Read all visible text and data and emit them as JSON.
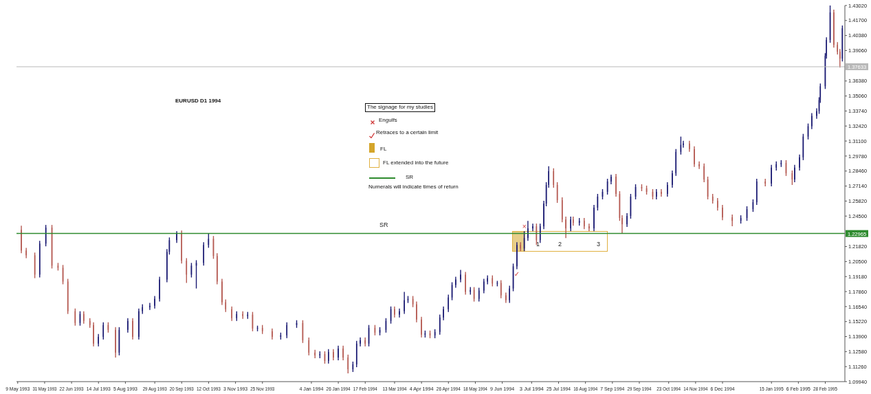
{
  "chart_data": {
    "type": "candlestick",
    "title": "EURUSD D1 1994",
    "x": [
      "1993-05-12",
      "1993-05-16",
      "1993-05-23",
      "1993-05-27",
      "1993-06-01",
      "1993-06-06",
      "1993-06-11",
      "1993-06-15",
      "1993-06-19",
      "1993-06-25",
      "1993-06-29",
      "1993-07-02",
      "1993-07-07",
      "1993-07-10",
      "1993-07-14",
      "1993-07-18",
      "1993-07-22",
      "1993-07-28",
      "1993-07-31",
      "1993-08-07",
      "1993-08-11",
      "1993-08-16",
      "1993-08-19",
      "1993-08-25",
      "1993-08-29",
      "1993-09-02",
      "1993-09-08",
      "1993-09-10",
      "1993-09-16",
      "1993-09-20",
      "1993-09-24",
      "1993-09-28",
      "1993-10-02",
      "1993-10-08",
      "1993-10-12",
      "1993-10-16",
      "1993-10-19",
      "1993-10-23",
      "1993-10-26",
      "1993-10-31",
      "1993-11-04",
      "1993-11-09",
      "1993-11-13",
      "1993-11-17",
      "1993-11-21",
      "1993-11-25",
      "1993-12-03",
      "1993-12-10",
      "1993-12-15",
      "1993-12-23",
      "1993-12-28",
      "1994-01-02",
      "1994-01-07",
      "1994-01-11",
      "1994-01-15",
      "1994-01-18",
      "1994-01-22",
      "1994-01-26",
      "1994-01-30",
      "1994-02-03",
      "1994-02-07",
      "1994-02-10",
      "1994-02-13",
      "1994-02-17",
      "1994-02-20",
      "1994-02-25",
      "1994-03-01",
      "1994-03-06",
      "1994-03-10",
      "1994-03-13",
      "1994-03-17",
      "1994-03-21",
      "1994-03-24",
      "1994-03-28",
      "1994-03-31",
      "1994-04-04",
      "1994-04-07",
      "1994-04-11",
      "1994-04-15",
      "1994-04-19",
      "1994-04-22",
      "1994-04-26",
      "1994-04-29",
      "1994-05-02",
      "1994-05-06",
      "1994-05-10",
      "1994-05-14",
      "1994-05-17",
      "1994-05-21",
      "1994-05-25",
      "1994-05-28",
      "1994-06-01",
      "1994-06-05",
      "1994-06-08",
      "1994-06-12",
      "1994-06-15",
      "1994-06-18",
      "1994-06-21",
      "1994-06-24",
      "1994-06-27",
      "1994-06-30",
      "1994-07-04",
      "1994-07-07",
      "1994-07-10",
      "1994-07-13",
      "1994-07-15",
      "1994-07-17",
      "1994-07-21",
      "1994-07-24",
      "1994-07-28",
      "1994-07-31",
      "1994-08-04",
      "1994-08-06",
      "1994-08-11",
      "1994-08-15",
      "1994-08-19",
      "1994-08-23",
      "1994-08-26",
      "1994-08-30",
      "1994-09-03",
      "1994-09-06",
      "1994-09-10",
      "1994-09-13",
      "1994-09-15",
      "1994-09-19",
      "1994-09-22",
      "1994-09-26",
      "1994-10-01",
      "1994-10-05",
      "1994-10-10",
      "1994-10-13",
      "1994-10-17",
      "1994-10-22",
      "1994-10-26",
      "1994-10-29",
      "1994-11-02",
      "1994-11-04",
      "1994-11-09",
      "1994-11-13",
      "1994-11-17",
      "1994-11-21",
      "1994-11-24",
      "1994-11-28",
      "1994-12-02",
      "1994-12-06",
      "1994-12-14",
      "1994-12-21",
      "1994-12-26",
      "1994-12-31",
      "1995-01-03",
      "1995-01-10",
      "1995-01-15",
      "1995-01-19",
      "1995-01-23",
      "1995-01-27",
      "1995-02-01",
      "1995-02-03",
      "1995-02-07",
      "1995-02-10",
      "1995-02-14",
      "1995-02-17",
      "1995-02-21",
      "1995-02-23",
      "1995-02-24",
      "1995-02-28",
      "1995-03-01",
      "1995-03-04",
      "1995-03-07",
      "1995-03-10",
      "1995-03-12",
      "1995-03-14"
    ],
    "ohlc": [
      [
        1.2329,
        1.2366,
        1.2123,
        1.2147
      ],
      [
        1.2147,
        1.2171,
        1.208,
        1.2105
      ],
      [
        1.2105,
        1.2129,
        1.1904,
        1.1935
      ],
      [
        1.1935,
        1.2232,
        1.191,
        1.2208
      ],
      [
        1.2208,
        1.2372,
        1.2184,
        1.2348
      ],
      [
        1.2348,
        1.2372,
        1.1989,
        1.2014
      ],
      [
        1.2014,
        1.2038,
        1.1971,
        1.1995
      ],
      [
        1.1995,
        1.202,
        1.185,
        1.1874
      ],
      [
        1.1874,
        1.1898,
        1.1589,
        1.1613
      ],
      [
        1.1613,
        1.1637,
        1.1486,
        1.151
      ],
      [
        1.151,
        1.1613,
        1.1486,
        1.1589
      ],
      [
        1.1589,
        1.1613,
        1.1504,
        1.1528
      ],
      [
        1.1528,
        1.1552,
        1.1467,
        1.1492
      ],
      [
        1.1492,
        1.1516,
        1.1304,
        1.1328
      ],
      [
        1.1328,
        1.1413,
        1.1304,
        1.1388
      ],
      [
        1.1388,
        1.1516,
        1.1364,
        1.1492
      ],
      [
        1.1492,
        1.1516,
        1.1425,
        1.1449
      ],
      [
        1.1449,
        1.1473,
        1.1206,
        1.1249
      ],
      [
        1.1249,
        1.1473,
        1.1225,
        1.1449
      ],
      [
        1.1449,
        1.1552,
        1.1425,
        1.1528
      ],
      [
        1.1528,
        1.1552,
        1.1364,
        1.1388
      ],
      [
        1.1388,
        1.1637,
        1.1364,
        1.1613
      ],
      [
        1.1613,
        1.1674,
        1.1589,
        1.1649
      ],
      [
        1.1649,
        1.1686,
        1.1625,
        1.1661
      ],
      [
        1.1661,
        1.1747,
        1.1637,
        1.1722
      ],
      [
        1.1722,
        1.1917,
        1.1698,
        1.1892
      ],
      [
        1.1892,
        1.2159,
        1.1868,
        1.2135
      ],
      [
        1.2135,
        1.2262,
        1.2111,
        1.2238
      ],
      [
        1.2238,
        1.2317,
        1.2214,
        1.2299
      ],
      [
        1.2299,
        1.2323,
        1.2032,
        1.2057
      ],
      [
        1.2057,
        1.208,
        1.1862,
        1.1935
      ],
      [
        1.1935,
        1.2038,
        1.191,
        1.2014
      ],
      [
        1.2014,
        1.2062,
        1.1813,
        1.2038
      ],
      [
        1.2038,
        1.222,
        1.2014,
        1.2196
      ],
      [
        1.2196,
        1.2299,
        1.2171,
        1.225
      ],
      [
        1.225,
        1.2275,
        1.2074,
        1.2099
      ],
      [
        1.2099,
        1.2123,
        1.185,
        1.1874
      ],
      [
        1.1874,
        1.1898,
        1.1668,
        1.1692
      ],
      [
        1.1692,
        1.1716,
        1.1607,
        1.1631
      ],
      [
        1.1631,
        1.1655,
        1.1528,
        1.1552
      ],
      [
        1.1552,
        1.1613,
        1.1528,
        1.1589
      ],
      [
        1.1589,
        1.1613,
        1.1546,
        1.1571
      ],
      [
        1.1571,
        1.1607,
        1.1546,
        1.1583
      ],
      [
        1.1583,
        1.1607,
        1.1437,
        1.1461
      ],
      [
        1.1461,
        1.1486,
        1.1437,
        1.1467
      ],
      [
        1.1467,
        1.1492,
        1.1413,
        1.1437
      ],
      [
        1.1437,
        1.1461,
        1.1364,
        1.1388
      ],
      [
        1.1388,
        1.1425,
        1.1364,
        1.1401
      ],
      [
        1.1401,
        1.1516,
        1.1376,
        1.1492
      ],
      [
        1.1492,
        1.1534,
        1.1467,
        1.151
      ],
      [
        1.151,
        1.1534,
        1.1334,
        1.1358
      ],
      [
        1.1358,
        1.1382,
        1.1225,
        1.1249
      ],
      [
        1.1249,
        1.1273,
        1.12,
        1.1225
      ],
      [
        1.1225,
        1.1261,
        1.12,
        1.1237
      ],
      [
        1.1237,
        1.1261,
        1.1152,
        1.1176
      ],
      [
        1.1176,
        1.1279,
        1.1152,
        1.1255
      ],
      [
        1.1255,
        1.1279,
        1.1182,
        1.1206
      ],
      [
        1.1206,
        1.131,
        1.1182,
        1.1285
      ],
      [
        1.1285,
        1.131,
        1.1182,
        1.1206
      ],
      [
        1.1206,
        1.1231,
        1.1067,
        1.1103
      ],
      [
        1.1103,
        1.117,
        1.1079,
        1.1146
      ],
      [
        1.1146,
        1.1352,
        1.1121,
        1.1328
      ],
      [
        1.1328,
        1.1382,
        1.1304,
        1.1358
      ],
      [
        1.1358,
        1.1382,
        1.1304,
        1.1328
      ],
      [
        1.1328,
        1.1492,
        1.1304,
        1.1467
      ],
      [
        1.1467,
        1.1492,
        1.1401,
        1.1425
      ],
      [
        1.1425,
        1.1473,
        1.1401,
        1.1449
      ],
      [
        1.1449,
        1.1552,
        1.1425,
        1.1528
      ],
      [
        1.1528,
        1.1655,
        1.1504,
        1.1631
      ],
      [
        1.1631,
        1.1655,
        1.1558,
        1.1583
      ],
      [
        1.1583,
        1.1637,
        1.1558,
        1.1613
      ],
      [
        1.1613,
        1.1783,
        1.1589,
        1.171
      ],
      [
        1.171,
        1.1747,
        1.1686,
        1.1722
      ],
      [
        1.1722,
        1.1747,
        1.1649,
        1.1674
      ],
      [
        1.1674,
        1.1698,
        1.1516,
        1.154
      ],
      [
        1.154,
        1.1564,
        1.1382,
        1.1407
      ],
      [
        1.1407,
        1.1443,
        1.1382,
        1.1419
      ],
      [
        1.1419,
        1.1443,
        1.1376,
        1.1401
      ],
      [
        1.1401,
        1.1455,
        1.1376,
        1.1431
      ],
      [
        1.1431,
        1.1583,
        1.1407,
        1.1558
      ],
      [
        1.1558,
        1.1655,
        1.1534,
        1.1631
      ],
      [
        1.1631,
        1.1759,
        1.1607,
        1.1734
      ],
      [
        1.1734,
        1.1868,
        1.171,
        1.1844
      ],
      [
        1.1844,
        1.1917,
        1.1819,
        1.1892
      ],
      [
        1.1892,
        1.1977,
        1.1868,
        1.1935
      ],
      [
        1.1935,
        1.1959,
        1.1759,
        1.1783
      ],
      [
        1.1783,
        1.1825,
        1.1759,
        1.1801
      ],
      [
        1.1801,
        1.1825,
        1.1698,
        1.1722
      ],
      [
        1.1722,
        1.1819,
        1.1698,
        1.1795
      ],
      [
        1.1795,
        1.1898,
        1.1771,
        1.1874
      ],
      [
        1.1874,
        1.1929,
        1.185,
        1.1904
      ],
      [
        1.1904,
        1.1929,
        1.1832,
        1.1856
      ],
      [
        1.1856,
        1.188,
        1.1832,
        1.1862
      ],
      [
        1.1862,
        1.1886,
        1.1728,
        1.1753
      ],
      [
        1.1753,
        1.1777,
        1.1686,
        1.171
      ],
      [
        1.171,
        1.1838,
        1.1686,
        1.1813
      ],
      [
        1.1813,
        1.2032,
        1.1789,
        1.2008
      ],
      [
        1.2008,
        1.222,
        1.1983,
        1.2196
      ],
      [
        1.2196,
        1.222,
        1.2141,
        1.2165
      ],
      [
        1.2165,
        1.2317,
        1.2141,
        1.2257
      ],
      [
        1.2257,
        1.2408,
        1.2232,
        1.2342
      ],
      [
        1.2342,
        1.2384,
        1.2317,
        1.236
      ],
      [
        1.236,
        1.2384,
        1.2196,
        1.2238
      ],
      [
        1.2238,
        1.2384,
        1.2214,
        1.236
      ],
      [
        1.236,
        1.2584,
        1.2335,
        1.256
      ],
      [
        1.256,
        1.2748,
        1.2536,
        1.2724
      ],
      [
        1.2724,
        1.2888,
        1.27,
        1.2845
      ],
      [
        1.2845,
        1.287,
        1.27,
        1.2724
      ],
      [
        1.2724,
        1.2748,
        1.2566,
        1.259
      ],
      [
        1.259,
        1.2615,
        1.2396,
        1.242
      ],
      [
        1.242,
        1.2445,
        1.2257,
        1.2342
      ],
      [
        1.2342,
        1.2445,
        1.2317,
        1.242
      ],
      [
        1.242,
        1.2445,
        1.2366,
        1.239
      ],
      [
        1.239,
        1.2433,
        1.2366,
        1.2408
      ],
      [
        1.2408,
        1.2433,
        1.2335,
        1.236
      ],
      [
        1.236,
        1.2384,
        1.2317,
        1.2342
      ],
      [
        1.2342,
        1.2548,
        1.2317,
        1.2524
      ],
      [
        1.2524,
        1.2645,
        1.2499,
        1.2621
      ],
      [
        1.2621,
        1.2687,
        1.2597,
        1.2663
      ],
      [
        1.2663,
        1.2778,
        1.2639,
        1.2754
      ],
      [
        1.2754,
        1.2815,
        1.273,
        1.2797
      ],
      [
        1.2797,
        1.2821,
        1.2621,
        1.2645
      ],
      [
        1.2645,
        1.2669,
        1.2408,
        1.2433
      ],
      [
        1.2433,
        1.2457,
        1.2299,
        1.2378
      ],
      [
        1.2378,
        1.2475,
        1.2354,
        1.2451
      ],
      [
        1.2451,
        1.2645,
        1.2427,
        1.2621
      ],
      [
        1.2621,
        1.273,
        1.2597,
        1.2706
      ],
      [
        1.2706,
        1.273,
        1.2669,
        1.2694
      ],
      [
        1.2694,
        1.2718,
        1.2639,
        1.2663
      ],
      [
        1.2663,
        1.2687,
        1.2597,
        1.2621
      ],
      [
        1.2621,
        1.2687,
        1.2597,
        1.2663
      ],
      [
        1.2663,
        1.2687,
        1.2621,
        1.2645
      ],
      [
        1.2645,
        1.2748,
        1.2621,
        1.2724
      ],
      [
        1.2724,
        1.2851,
        1.27,
        1.2827
      ],
      [
        1.2827,
        1.3039,
        1.2803,
        1.3015
      ],
      [
        1.3015,
        1.3149,
        1.2991,
        1.3076
      ],
      [
        1.3076,
        1.3112,
        1.3052,
        1.3088
      ],
      [
        1.3088,
        1.3112,
        1.3015,
        1.3039
      ],
      [
        1.3039,
        1.3064,
        1.2882,
        1.2906
      ],
      [
        1.2906,
        1.293,
        1.2864,
        1.2888
      ],
      [
        1.2888,
        1.2912,
        1.2748,
        1.2772
      ],
      [
        1.2772,
        1.2797,
        1.2597,
        1.2621
      ],
      [
        1.2621,
        1.2645,
        1.256,
        1.2584
      ],
      [
        1.2584,
        1.2609,
        1.2499,
        1.2524
      ],
      [
        1.2524,
        1.2548,
        1.2414,
        1.2439
      ],
      [
        1.2439,
        1.2463,
        1.236,
        1.2408
      ],
      [
        1.2408,
        1.2457,
        1.2384,
        1.2433
      ],
      [
        1.2433,
        1.2536,
        1.2408,
        1.2511
      ],
      [
        1.2511,
        1.2597,
        1.2487,
        1.2572
      ],
      [
        1.2572,
        1.2778,
        1.2548,
        1.2754
      ],
      [
        1.2754,
        1.2778,
        1.2712,
        1.2736
      ],
      [
        1.2736,
        1.29,
        1.2712,
        1.2876
      ],
      [
        1.2876,
        1.293,
        1.2851,
        1.2906
      ],
      [
        1.2906,
        1.2942,
        1.2882,
        1.2918
      ],
      [
        1.2918,
        1.2942,
        1.2803,
        1.2827
      ],
      [
        1.2827,
        1.2851,
        1.2724,
        1.2772
      ],
      [
        1.2772,
        1.29,
        1.2748,
        1.2876
      ],
      [
        1.2876,
        1.2991,
        1.2851,
        1.2967
      ],
      [
        1.2967,
        1.3173,
        1.2942,
        1.3149
      ],
      [
        1.3149,
        1.3264,
        1.3124,
        1.324
      ],
      [
        1.324,
        1.3355,
        1.3215,
        1.3331
      ],
      [
        1.3331,
        1.3398,
        1.3306,
        1.3373
      ],
      [
        1.3373,
        1.3495,
        1.3349,
        1.347
      ],
      [
        1.347,
        1.3616,
        1.3446,
        1.3592
      ],
      [
        1.3592,
        1.3883,
        1.3568,
        1.3859
      ],
      [
        1.3859,
        1.4023,
        1.3835,
        1.3999
      ],
      [
        1.3999,
        1.4302,
        1.3974,
        1.4241
      ],
      [
        1.4241,
        1.4266,
        1.3932,
        1.3956
      ],
      [
        1.3956,
        1.398,
        1.3871,
        1.3895
      ],
      [
        1.3895,
        1.392,
        1.3756,
        1.3835
      ],
      [
        1.3835,
        1.4126,
        1.381,
        1.4102
      ]
    ],
    "colors": [
      "#b55a52",
      "#b55a52",
      "#b55a52",
      "#1b1b73",
      "#1b1b73",
      "#b55a52",
      "#b55a52",
      "#b55a52",
      "#b55a52",
      "#b55a52",
      "#1b1b73",
      "#b55a52",
      "#b55a52",
      "#b55a52",
      "#1b1b73",
      "#1b1b73",
      "#b55a52",
      "#b55a52",
      "#1b1b73",
      "#1b1b73",
      "#b55a52",
      "#1b1b73",
      "#1b1b73",
      "#1b1b73",
      "#1b1b73",
      "#1b1b73",
      "#1b1b73",
      "#1b1b73",
      "#1b1b73",
      "#b55a52",
      "#b55a52",
      "#1b1b73",
      "#1b1b73",
      "#1b1b73",
      "#1b1b73",
      "#b55a52",
      "#b55a52",
      "#b55a52",
      "#b55a52",
      "#b55a52",
      "#1b1b73",
      "#b55a52",
      "#1b1b73",
      "#b55a52",
      "#1b1b73",
      "#b55a52",
      "#b55a52",
      "#1b1b73",
      "#1b1b73",
      "#1b1b73",
      "#b55a52",
      "#b55a52",
      "#b55a52",
      "#1b1b73",
      "#b55a52",
      "#1b1b73",
      "#b55a52",
      "#1b1b73",
      "#b55a52",
      "#b55a52",
      "#1b1b73",
      "#1b1b73",
      "#1b1b73",
      "#b55a52",
      "#1b1b73",
      "#b55a52",
      "#1b1b73",
      "#1b1b73",
      "#1b1b73",
      "#b55a52",
      "#1b1b73",
      "#1b1b73",
      "#1b1b73",
      "#b55a52",
      "#b55a52",
      "#b55a52",
      "#1b1b73",
      "#b55a52",
      "#1b1b73",
      "#1b1b73",
      "#1b1b73",
      "#1b1b73",
      "#1b1b73",
      "#1b1b73",
      "#1b1b73",
      "#b55a52",
      "#1b1b73",
      "#b55a52",
      "#1b1b73",
      "#1b1b73",
      "#1b1b73",
      "#b55a52",
      "#1b1b73",
      "#b55a52",
      "#b55a52",
      "#1b1b73",
      "#1b1b73",
      "#1b1b73",
      "#b55a52",
      "#1b1b73",
      "#1b1b73",
      "#1b1b73",
      "#b55a52",
      "#1b1b73",
      "#1b1b73",
      "#1b1b73",
      "#1b1b73",
      "#b55a52",
      "#b55a52",
      "#b55a52",
      "#b55a52",
      "#1b1b73",
      "#b55a52",
      "#1b1b73",
      "#b55a52",
      "#b55a52",
      "#1b1b73",
      "#1b1b73",
      "#1b1b73",
      "#1b1b73",
      "#1b1b73",
      "#b55a52",
      "#b55a52",
      "#b55a52",
      "#1b1b73",
      "#1b1b73",
      "#1b1b73",
      "#b55a52",
      "#b55a52",
      "#b55a52",
      "#1b1b73",
      "#b55a52",
      "#1b1b73",
      "#1b1b73",
      "#1b1b73",
      "#1b1b73",
      "#1b1b73",
      "#b55a52",
      "#b55a52",
      "#b55a52",
      "#b55a52",
      "#b55a52",
      "#b55a52",
      "#b55a52",
      "#b55a52",
      "#b55a52",
      "#1b1b73",
      "#1b1b73",
      "#1b1b73",
      "#1b1b73",
      "#b55a52",
      "#1b1b73",
      "#1b1b73",
      "#1b1b73",
      "#b55a52",
      "#b55a52",
      "#1b1b73",
      "#1b1b73",
      "#1b1b73",
      "#1b1b73",
      "#1b1b73",
      "#1b1b73",
      "#1b1b73",
      "#1b1b73",
      "#1b1b73",
      "#1b1b73",
      "#1b1b73",
      "#b55a52",
      "#b55a52",
      "#b55a52",
      "#1b1b73"
    ],
    "xlim": [
      "1993-05-08",
      "1995-03-16"
    ],
    "xticks": [
      {
        "value": "1993-05-09",
        "label": "9 May 1993"
      },
      {
        "value": "1993-05-31",
        "label": "31 May 1993"
      },
      {
        "value": "1993-06-22",
        "label": "22 Jun 1993"
      },
      {
        "value": "1993-07-14",
        "label": "14 Jul 1993"
      },
      {
        "value": "1993-08-05",
        "label": "5 Aug 1993"
      },
      {
        "value": "1993-08-29",
        "label": "29 Aug 1993"
      },
      {
        "value": "1993-09-20",
        "label": "20 Sep 1993"
      },
      {
        "value": "1993-10-12",
        "label": "12 Oct 1993"
      },
      {
        "value": "1993-11-03",
        "label": "3 Nov 1993"
      },
      {
        "value": "1993-11-25",
        "label": "25 Nov 1993"
      },
      {
        "value": "1994-01-04",
        "label": "4 Jan 1994"
      },
      {
        "value": "1994-01-26",
        "label": "26 Jan 1994"
      },
      {
        "value": "1994-02-17",
        "label": "17 Feb 1994"
      },
      {
        "value": "1994-03-13",
        "label": "13 Mar 1994"
      },
      {
        "value": "1994-04-04",
        "label": "4 Apr 1994"
      },
      {
        "value": "1994-04-26",
        "label": "26 Apr 1994"
      },
      {
        "value": "1994-05-18",
        "label": "18 May 1994"
      },
      {
        "value": "1994-06-09",
        "label": "9 Jun 1994"
      },
      {
        "value": "1994-07-03",
        "label": "3 Jul 1994"
      },
      {
        "value": "1994-07-25",
        "label": "25 Jul 1994"
      },
      {
        "value": "1994-08-16",
        "label": "16 Aug 1994"
      },
      {
        "value": "1994-09-07",
        "label": "7 Sep 1994"
      },
      {
        "value": "1994-09-29",
        "label": "29 Sep 1994"
      },
      {
        "value": "1994-10-23",
        "label": "23 Oct 1994"
      },
      {
        "value": "1994-11-14",
        "label": "14 Nov 1994"
      },
      {
        "value": "1994-12-06",
        "label": "6 Dec 1994"
      },
      {
        "value": "1995-01-15",
        "label": "15 Jan 1995"
      },
      {
        "value": "1995-02-06",
        "label": "6 Feb 1995"
      },
      {
        "value": "1995-02-28",
        "label": "28 Feb 1995"
      }
    ],
    "ylim": [
      1.0994,
      1.4302
    ],
    "yticks": [
      {
        "value": 1.0994,
        "label": "1.09940"
      },
      {
        "value": 1.1126,
        "label": "1.11260"
      },
      {
        "value": 1.1258,
        "label": "1.12580"
      },
      {
        "value": 1.139,
        "label": "1.13900"
      },
      {
        "value": 1.1522,
        "label": "1.15220"
      },
      {
        "value": 1.1654,
        "label": "1.16540"
      },
      {
        "value": 1.1786,
        "label": "1.17860"
      },
      {
        "value": 1.1918,
        "label": "1.19180"
      },
      {
        "value": 1.205,
        "label": "1.20500"
      },
      {
        "value": 1.2182,
        "label": "1.21820"
      },
      {
        "value": 1.245,
        "label": "1.24500"
      },
      {
        "value": 1.2582,
        "label": "1.25820"
      },
      {
        "value": 1.2714,
        "label": "1.27140"
      },
      {
        "value": 1.2846,
        "label": "1.28460"
      },
      {
        "value": 1.2978,
        "label": "1.29780"
      },
      {
        "value": 1.311,
        "label": "1.31100"
      },
      {
        "value": 1.3242,
        "label": "1.32420"
      },
      {
        "value": 1.3374,
        "label": "1.33740"
      },
      {
        "value": 1.3506,
        "label": "1.35060"
      },
      {
        "value": 1.3638,
        "label": "1.36380"
      },
      {
        "value": 1.3906,
        "label": "1.39060"
      },
      {
        "value": 1.4038,
        "label": "1.40380"
      },
      {
        "value": 1.417,
        "label": "1.41700"
      },
      {
        "value": 1.4302,
        "label": "1.43020"
      }
    ],
    "ref_lines": [
      {
        "axis": "y",
        "value": 1.22965,
        "label": "1.22965",
        "color": "#2e8b2e"
      },
      {
        "axis": "y",
        "value": 1.37633,
        "label": "1.37633",
        "color": "#b8b8b8"
      }
    ],
    "annotations": [
      "The signage for my studies",
      "Engulfs",
      "Retraces to a certain limit",
      "FL",
      "FL extended into the future",
      "SR",
      "Numerals will indicate times of return",
      "SR",
      "1",
      "2",
      "3",
      {
        "text": "×",
        "x": "1994-06-27",
        "y": 1.2317
      },
      {
        "text": "✓",
        "x": "1994-06-21",
        "y": 1.1983
      }
    ]
  }
}
